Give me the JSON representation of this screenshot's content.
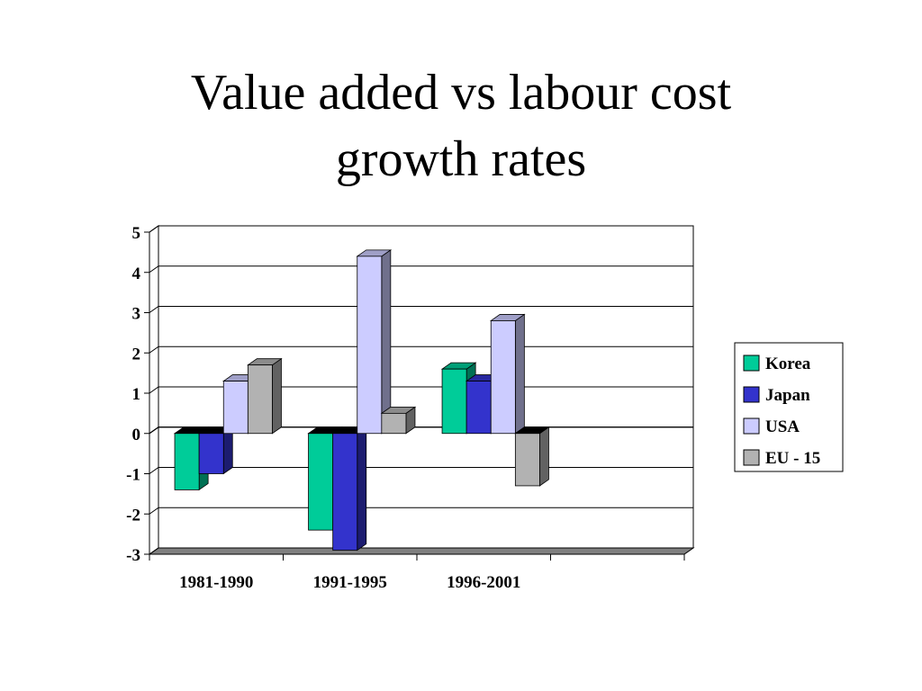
{
  "slide": {
    "title_line1": "Value added vs labour cost",
    "title_line2": "growth rates"
  },
  "chart_data": {
    "type": "bar",
    "style": "3d-clustered",
    "categories": [
      "1981-1990",
      "1991-1995",
      "1996-2001",
      ""
    ],
    "series": [
      {
        "name": "Korea",
        "values": [
          -1.4,
          -2.4,
          1.6,
          null
        ],
        "color": "#00CC99"
      },
      {
        "name": "Japan",
        "values": [
          -1.0,
          -2.9,
          1.3,
          null
        ],
        "color": "#3333CC"
      },
      {
        "name": "USA",
        "values": [
          1.3,
          4.4,
          2.8,
          null
        ],
        "color": "#CCCCFF"
      },
      {
        "name": "EU - 15",
        "values": [
          1.7,
          0.5,
          -1.3,
          null
        ],
        "color": "#B2B2B2"
      }
    ],
    "y_ticks": [
      "5",
      "4",
      "3",
      "2",
      "1",
      "0",
      "-1",
      "-2",
      "-3"
    ],
    "ylim": [
      -3,
      5
    ],
    "grid": true,
    "legend_position": "right"
  }
}
